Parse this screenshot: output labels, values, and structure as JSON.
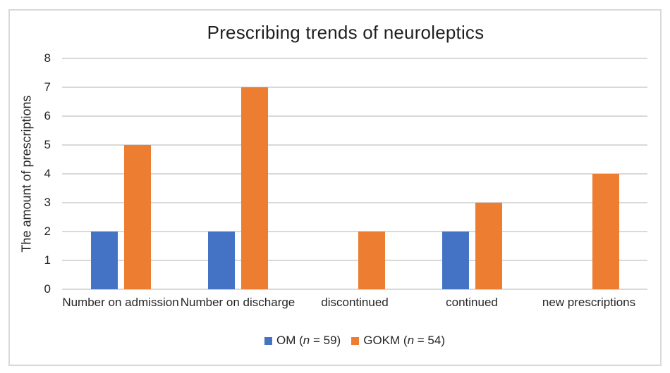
{
  "figure": {
    "background": "#ffffff",
    "border_color": "#d9d9d9",
    "gridline_color": "#d9d9d9",
    "text_color": "#262626"
  },
  "chart_data": {
    "type": "bar",
    "title": "Prescribing trends of neuroleptics",
    "xlabel": "",
    "ylabel": "The amount of prescriptions",
    "categories": [
      "Number on admission",
      "Number on discharge",
      "discontinued",
      "continued",
      "new prescriptions"
    ],
    "series": [
      {
        "name": "OM (n = 59)",
        "color": "#4472C4",
        "values": [
          2,
          2,
          0,
          2,
          0
        ]
      },
      {
        "name": "GOKM (n = 54)",
        "color": "#ED7D31",
        "values": [
          5,
          7,
          2,
          3,
          4
        ]
      }
    ],
    "ylim": [
      0,
      8
    ],
    "yticks": [
      0,
      1,
      2,
      3,
      4,
      5,
      6,
      7,
      8
    ],
    "grid": true,
    "legend_position": "bottom"
  }
}
